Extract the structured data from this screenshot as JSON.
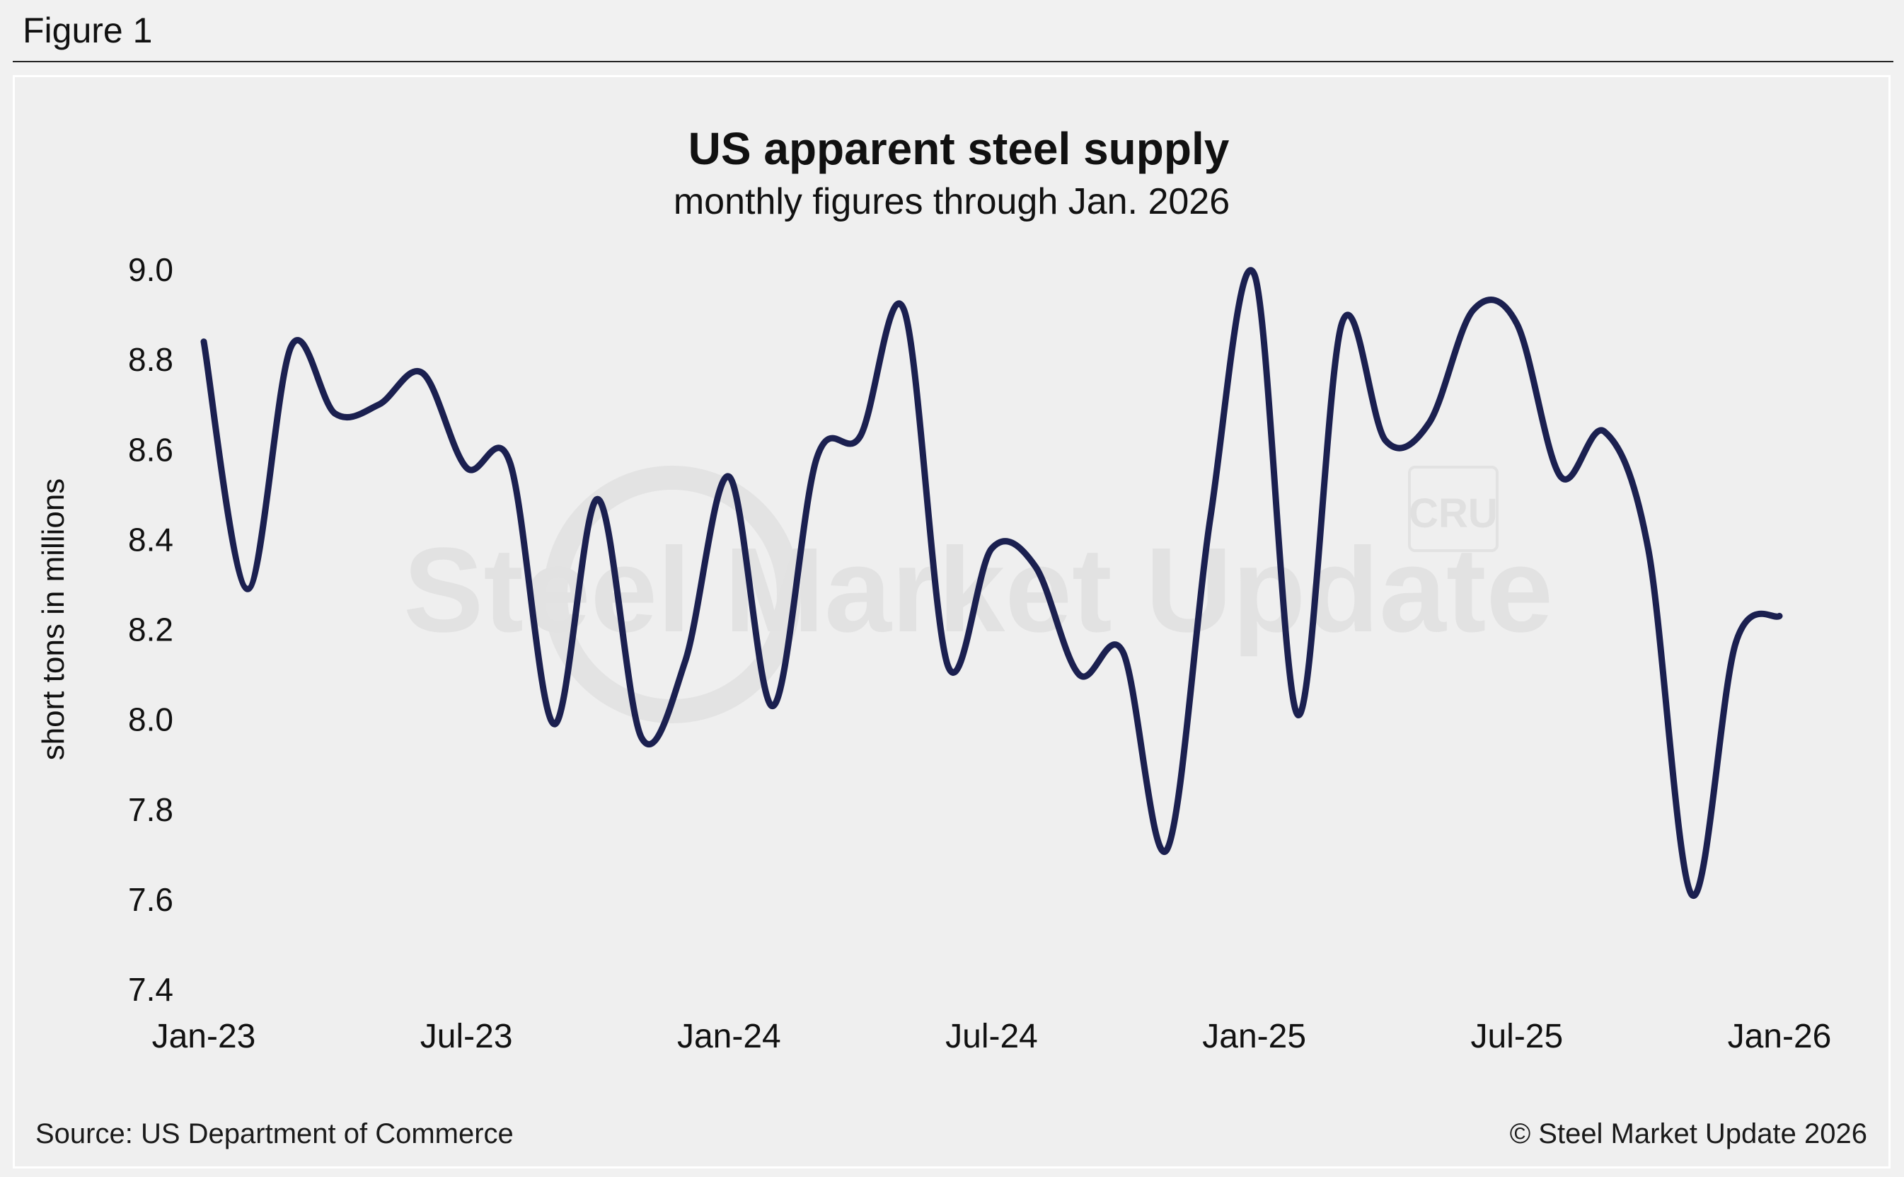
{
  "figure_label": "Figure 1",
  "footer": {
    "source": "Source: US Department of Commerce",
    "copyright": "© Steel Market Update 2026"
  },
  "watermarks": {
    "brand": "Steel Market Update",
    "logo": "CRU"
  },
  "colors": {
    "line": "#1b2050",
    "background": "#efefef",
    "watermark": "#e2e2e2"
  },
  "chart_data": {
    "type": "line",
    "title": "US apparent steel supply",
    "subtitle": "monthly figures through Jan. 2026",
    "xlabel": "",
    "ylabel": "short tons in millions",
    "ylim": [
      7.4,
      9.0
    ],
    "yticks": [
      "9.0",
      "8.8",
      "8.6",
      "8.4",
      "8.2",
      "8.0",
      "7.8",
      "7.6",
      "7.4"
    ],
    "ytick_values": [
      9.0,
      8.8,
      8.6,
      8.4,
      8.2,
      8.0,
      7.8,
      7.6,
      7.4
    ],
    "xticks": [
      "Jan-23",
      "Jul-23",
      "Jan-24",
      "Jul-24",
      "Jan-25",
      "Jul-25",
      "Jan-26"
    ],
    "xtick_index": [
      0,
      6,
      12,
      18,
      24,
      30,
      36
    ],
    "grid": false,
    "legend": "none",
    "series": [
      {
        "name": "US apparent steel supply",
        "x": [
          "Jan-23",
          "Feb-23",
          "Mar-23",
          "Apr-23",
          "May-23",
          "Jun-23",
          "Jul-23",
          "Aug-23",
          "Sep-23",
          "Oct-23",
          "Nov-23",
          "Dec-23",
          "Jan-24",
          "Feb-24",
          "Mar-24",
          "Apr-24",
          "May-24",
          "Jun-24",
          "Jul-24",
          "Aug-24",
          "Sep-24",
          "Oct-24",
          "Nov-24",
          "Dec-24",
          "Jan-25",
          "Feb-25",
          "Mar-25",
          "Apr-25",
          "May-25",
          "Jun-25",
          "Jul-25",
          "Aug-25",
          "Sep-25",
          "Oct-25",
          "Nov-25",
          "Dec-25",
          "Jan-26"
        ],
        "values": [
          8.84,
          8.29,
          8.83,
          8.68,
          8.7,
          8.77,
          8.56,
          8.57,
          7.99,
          8.49,
          7.96,
          8.13,
          8.54,
          8.03,
          8.58,
          8.63,
          8.91,
          8.12,
          8.38,
          8.34,
          8.1,
          8.15,
          7.71,
          8.45,
          8.99,
          8.01,
          8.88,
          8.62,
          8.66,
          8.91,
          8.88,
          8.54,
          8.64,
          8.38,
          7.61,
          8.17,
          8.23
        ]
      }
    ]
  }
}
